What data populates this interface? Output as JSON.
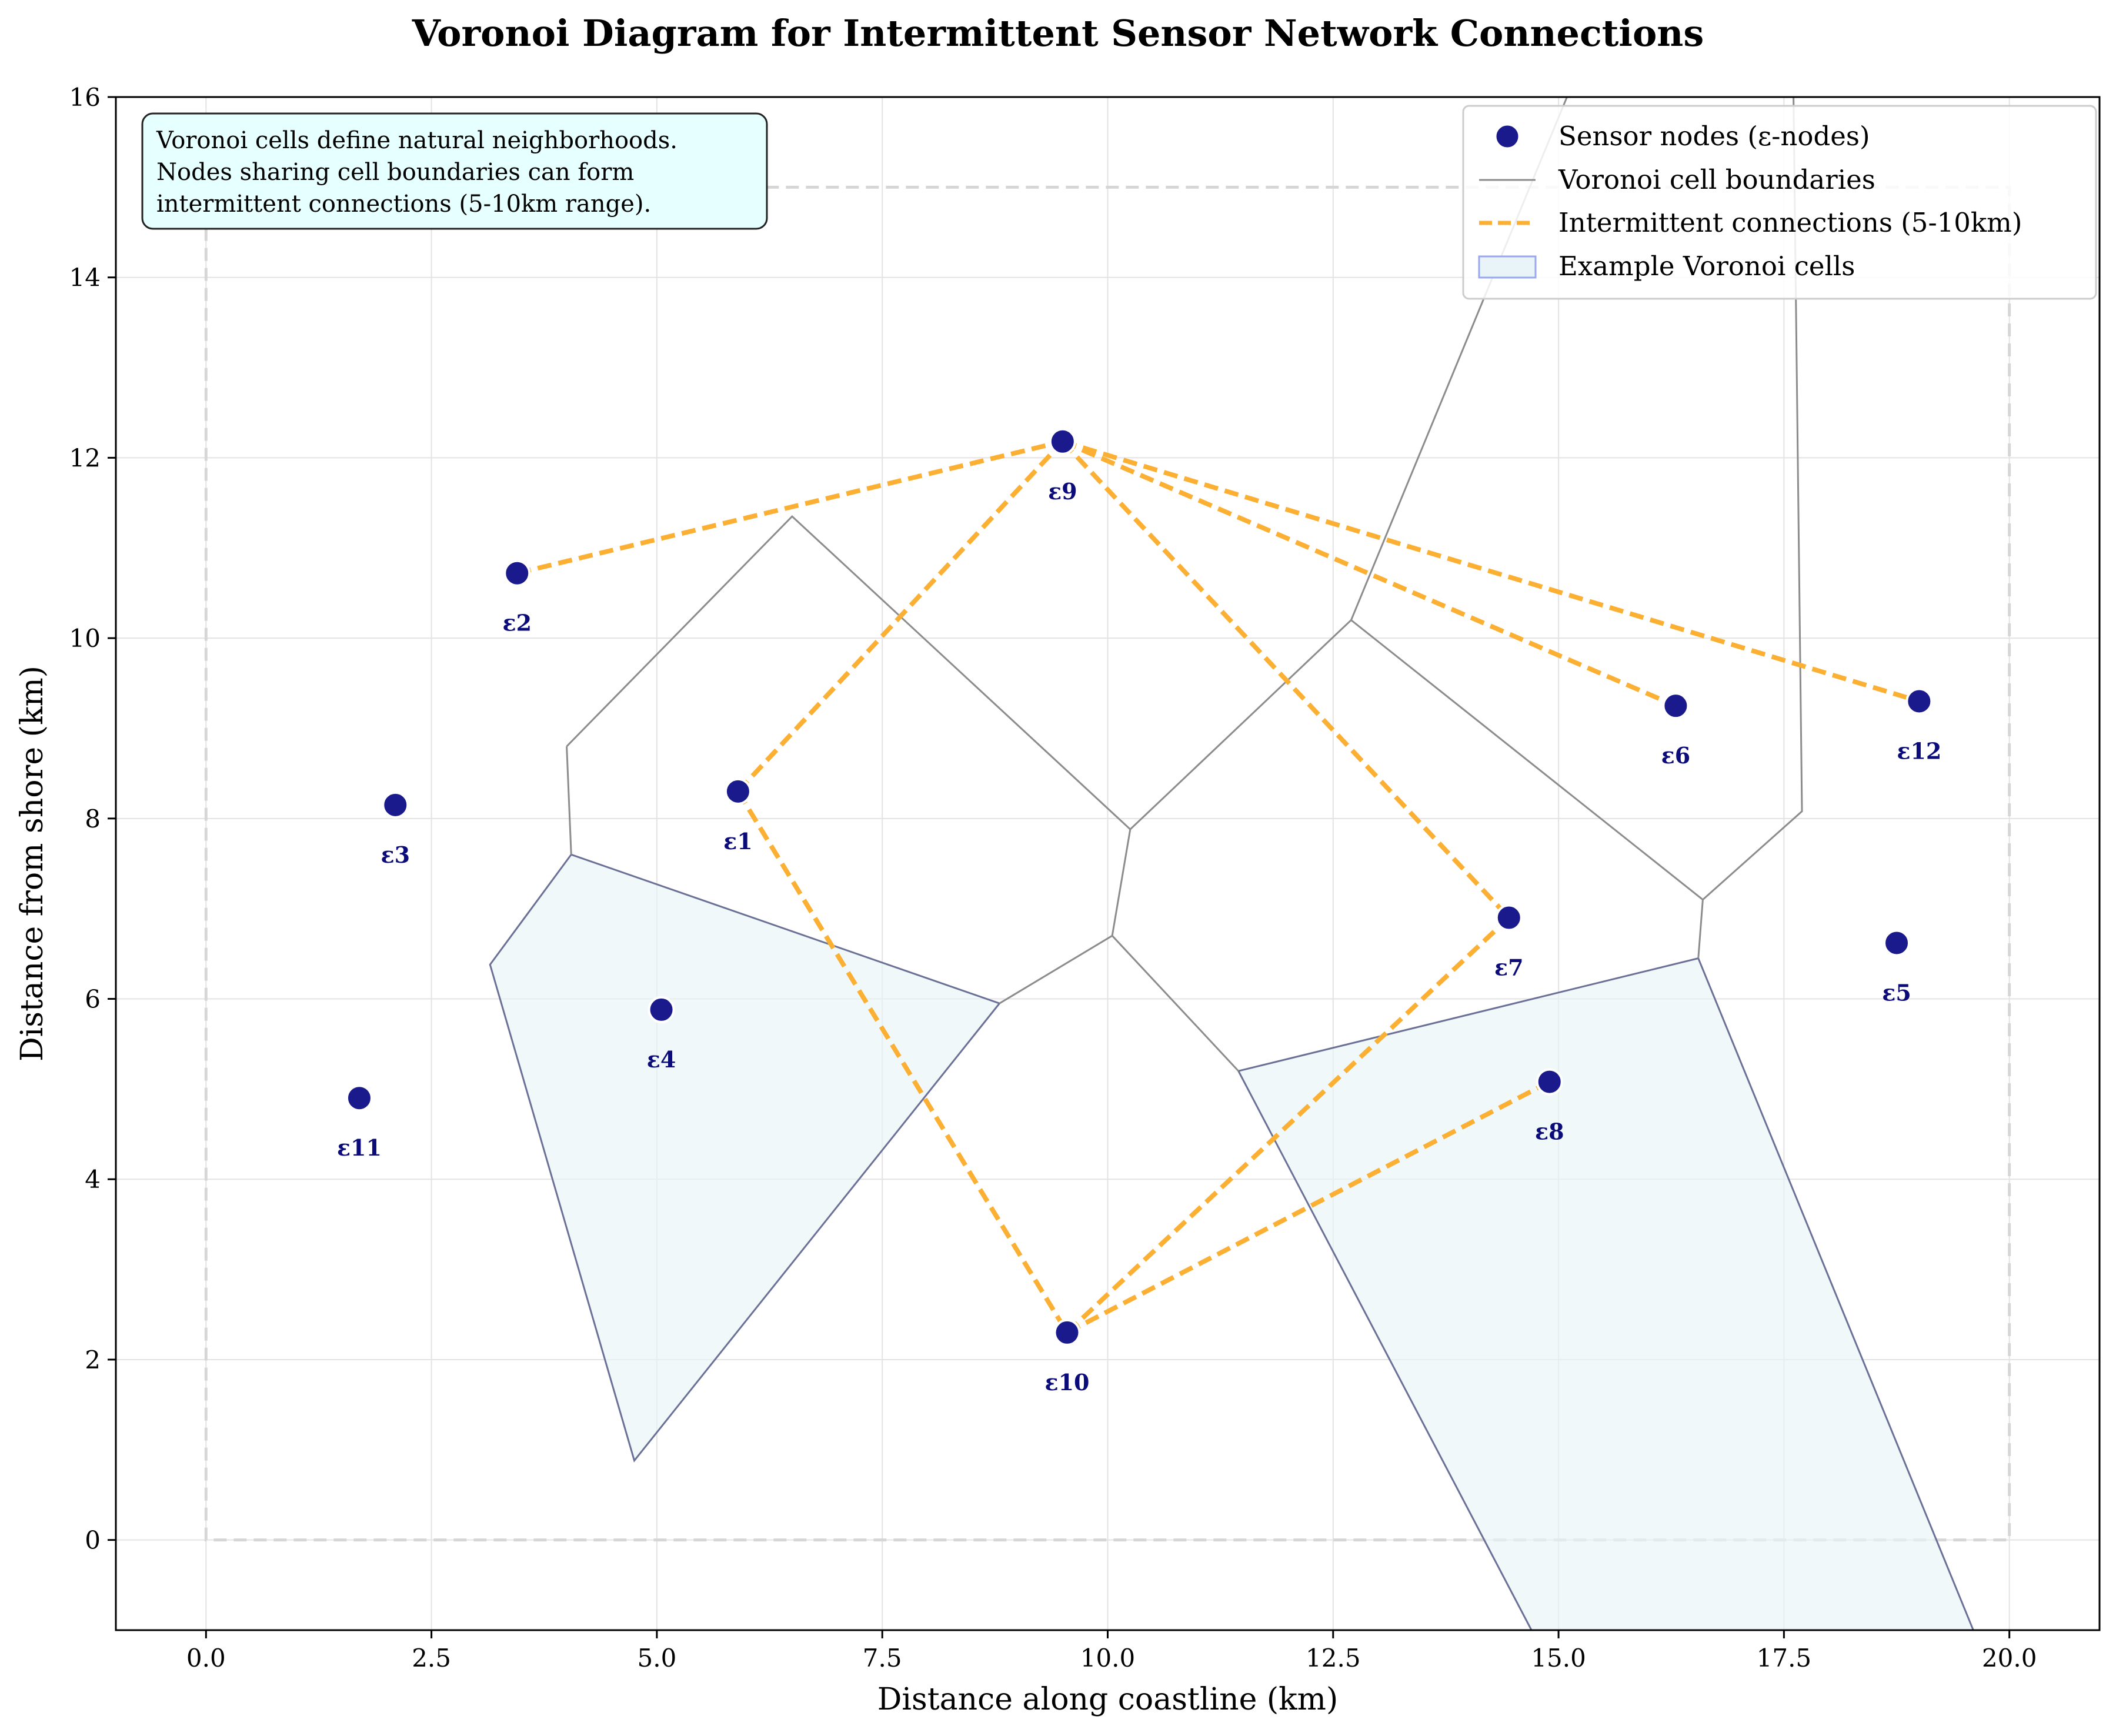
{
  "chart_data": {
    "type": "scatter",
    "title": "Voronoi Diagram for Intermittent Sensor Network Connections",
    "xlabel": "Distance along coastline (km)",
    "ylabel": "Distance from shore (km)",
    "xlim": [
      -1,
      21
    ],
    "ylim": [
      -1,
      16
    ],
    "xticks": [
      0,
      2.5,
      5,
      7.5,
      10,
      12.5,
      15,
      17.5,
      20
    ],
    "xtick_labels": [
      "0.0",
      "2.5",
      "5.0",
      "7.5",
      "10.0",
      "12.5",
      "15.0",
      "17.5",
      "20.0"
    ],
    "yticks": [
      0,
      2,
      4,
      6,
      8,
      10,
      12,
      14,
      16
    ],
    "ytick_labels": [
      "0",
      "2",
      "4",
      "6",
      "8",
      "10",
      "12",
      "14",
      "16"
    ],
    "grid": true,
    "legend_position": "top-right",
    "legend": [
      {
        "key": "nodes",
        "label": "Sensor nodes (ε-nodes)"
      },
      {
        "key": "boundaries",
        "label": "Voronoi cell boundaries"
      },
      {
        "key": "connections",
        "label": "Intermittent connections (5-10km)"
      },
      {
        "key": "cells",
        "label": "Example Voronoi cells"
      }
    ],
    "annotation": [
      "Voronoi cells define natural neighborhoods.",
      "Nodes sharing cell boundaries can form",
      "intermittent connections (5-10km range)."
    ],
    "colors": {
      "node": "#1a1a8c",
      "node_label": "#0b0b7a",
      "boundary": "#8c8c8c",
      "connection": "#fbb034",
      "cell_fill": "#e8f4f8",
      "cell_edge": "#6b7096",
      "domain_box": "#d6d6d6",
      "annotation_bg": "#e6ffff"
    },
    "nodes": [
      {
        "label": "ε1",
        "x": 5.9,
        "y": 8.3
      },
      {
        "label": "ε2",
        "x": 3.45,
        "y": 10.72
      },
      {
        "label": "ε3",
        "x": 2.1,
        "y": 8.15
      },
      {
        "label": "ε4",
        "x": 5.05,
        "y": 5.88
      },
      {
        "label": "ε5",
        "x": 18.75,
        "y": 6.62
      },
      {
        "label": "ε6",
        "x": 16.3,
        "y": 9.25
      },
      {
        "label": "ε7",
        "x": 14.45,
        "y": 6.9
      },
      {
        "label": "ε8",
        "x": 14.9,
        "y": 5.08
      },
      {
        "label": "ε9",
        "x": 9.5,
        "y": 12.18
      },
      {
        "label": "ε10",
        "x": 9.55,
        "y": 2.3
      },
      {
        "label": "ε11",
        "x": 1.7,
        "y": 4.9
      },
      {
        "label": "ε12",
        "x": 19.0,
        "y": 9.3
      }
    ],
    "connections": [
      [
        "ε2",
        "ε9"
      ],
      [
        "ε1",
        "ε9"
      ],
      [
        "ε9",
        "ε7"
      ],
      [
        "ε9",
        "ε6"
      ],
      [
        "ε9",
        "ε12"
      ],
      [
        "ε1",
        "ε10"
      ],
      [
        "ε10",
        "ε7"
      ],
      [
        "ε10",
        "ε8"
      ]
    ],
    "voronoi_boundaries": [
      [
        [
          4.0,
          8.8
        ],
        [
          6.5,
          11.35
        ],
        [
          10.25,
          7.88
        ],
        [
          12.7,
          10.2
        ],
        [
          16.6,
          7.1
        ],
        [
          17.7,
          8.08
        ],
        [
          17.6,
          16.5
        ]
      ],
      [
        [
          4.0,
          8.8
        ],
        [
          4.05,
          7.6
        ]
      ],
      [
        [
          10.25,
          7.88
        ],
        [
          10.05,
          6.7
        ],
        [
          8.8,
          5.95
        ]
      ],
      [
        [
          10.05,
          6.7
        ],
        [
          11.45,
          5.2
        ]
      ],
      [
        [
          16.6,
          7.1
        ],
        [
          16.55,
          6.45
        ]
      ],
      [
        [
          12.7,
          10.2
        ],
        [
          15.3,
          16.5
        ]
      ]
    ],
    "example_cells": [
      [
        [
          4.05,
          7.6
        ],
        [
          8.8,
          5.95
        ],
        [
          4.75,
          0.88
        ],
        [
          3.15,
          6.38
        ]
      ],
      [
        [
          11.45,
          5.2
        ],
        [
          16.55,
          6.45
        ],
        [
          19.6,
          -1.0
        ],
        [
          14.7,
          -1.0
        ]
      ]
    ],
    "domain_box": {
      "x": [
        0,
        20
      ],
      "y": [
        0,
        15
      ]
    }
  }
}
